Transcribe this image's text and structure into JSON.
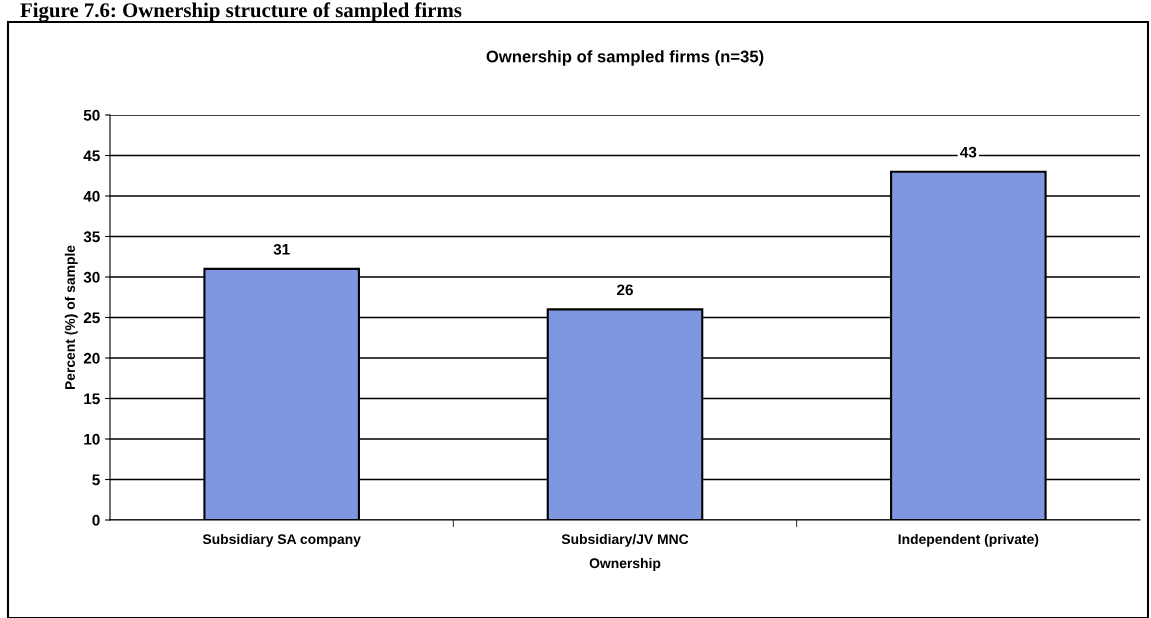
{
  "chart_data": {
    "type": "bar",
    "title": "Ownership of sampled firms (n=35)",
    "xlabel": "Ownership",
    "ylabel": "Percent (%) of sample",
    "categories": [
      "Subsidiary SA company",
      "Subsidiary/JV MNC",
      "Independent (private)"
    ],
    "values": [
      31,
      26,
      43
    ],
    "color": "#7f96e0",
    "ylim": [
      0,
      50
    ],
    "yticks": [
      0,
      5,
      10,
      15,
      20,
      25,
      30,
      35,
      40,
      45,
      50
    ],
    "grid": "y",
    "data_labels": true,
    "annotations": [
      "Figure 7.6: Ownership structure of sampled firms"
    ]
  }
}
